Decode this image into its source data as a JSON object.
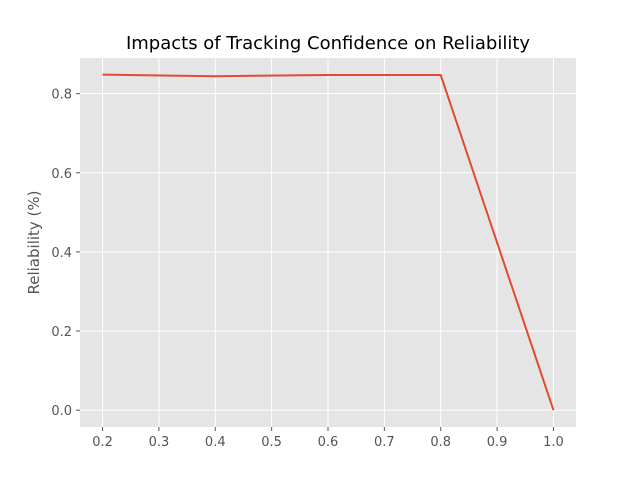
{
  "chart_data": {
    "type": "line",
    "title": "Impacts of Tracking Confidence on Reliability",
    "xlabel": "",
    "ylabel": "Reliability (%)",
    "xlim": [
      0.16,
      1.04
    ],
    "ylim": [
      -0.0425,
      0.89
    ],
    "grid": true,
    "x_ticks": [
      0.2,
      0.3,
      0.4,
      0.5,
      0.6,
      0.7,
      0.8,
      0.9,
      1.0
    ],
    "x_tick_labels": [
      "0.2",
      "0.3",
      "0.4",
      "0.5",
      "0.6",
      "0.7",
      "0.8",
      "0.9",
      "1.0"
    ],
    "y_ticks": [
      0.0,
      0.2,
      0.4,
      0.6,
      0.8
    ],
    "y_tick_labels": [
      "0.0",
      "0.2",
      "0.4",
      "0.6",
      "0.8"
    ],
    "series": [
      {
        "name": "reliability",
        "color": "#E24A33",
        "x": [
          0.2,
          0.4,
          0.6,
          0.8,
          1.0
        ],
        "y": [
          0.848,
          0.844,
          0.847,
          0.847,
          0.0
        ]
      }
    ],
    "colors": {
      "plot_background": "#E5E5E5",
      "grid": "#FFFFFF",
      "tick_text": "#555555"
    }
  }
}
